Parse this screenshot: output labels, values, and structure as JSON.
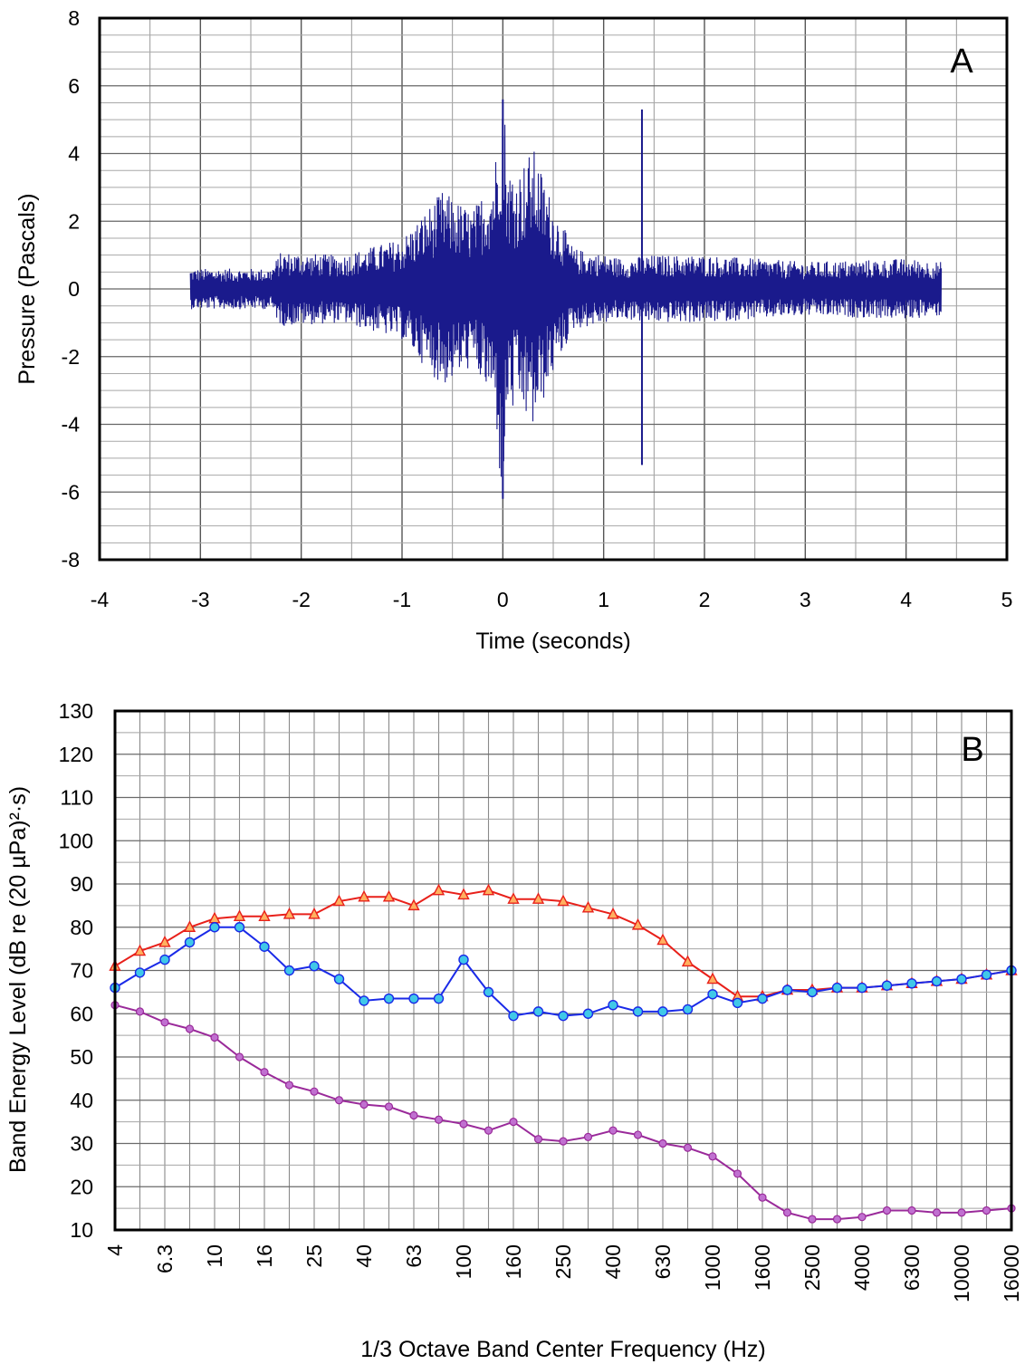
{
  "chart_data": [
    {
      "panel": "A",
      "type": "line",
      "panel_label": "A",
      "xlabel": "Time (seconds)",
      "ylabel": "Pressure (Pascals)",
      "xlim": [
        -4,
        5
      ],
      "ylim": [
        -8,
        8
      ],
      "x_ticks": [
        -4,
        -3,
        -2,
        -1,
        0,
        1,
        2,
        3,
        4,
        5
      ],
      "y_ticks": [
        -8,
        -6,
        -4,
        -2,
        0,
        2,
        4,
        6,
        8
      ],
      "grid": true,
      "series_color": "#1a1a8c",
      "waveform": {
        "start": -3.1,
        "end": 4.35,
        "envelope_points": [
          [
            -3.1,
            0.6
          ],
          [
            -2.3,
            0.6
          ],
          [
            -2.2,
            1.1
          ],
          [
            -1.6,
            1.0
          ],
          [
            -1.0,
            1.5
          ],
          [
            -0.6,
            2.9
          ],
          [
            -0.3,
            2.3
          ],
          [
            -0.1,
            3.4
          ],
          [
            0.0,
            5.6
          ],
          [
            0.05,
            3.0
          ],
          [
            0.3,
            4.2
          ],
          [
            0.5,
            2.5
          ],
          [
            0.7,
            1.2
          ],
          [
            1.2,
            0.9
          ],
          [
            1.45,
            1.0
          ],
          [
            2.0,
            1.0
          ],
          [
            3.0,
            0.8
          ],
          [
            4.0,
            0.9
          ],
          [
            4.35,
            0.8
          ]
        ],
        "spikes": [
          {
            "x": 0.0,
            "max": 5.6,
            "min": -6.2
          },
          {
            "x": 1.38,
            "max": 5.3,
            "min": -5.2
          }
        ]
      }
    },
    {
      "panel": "B",
      "type": "line",
      "panel_label": "B",
      "xlabel": "1/3 Octave Band Center Frequency (Hz)",
      "ylabel": "Band Energy Level (dB re (20 µPa)²·s)",
      "ylim": [
        10,
        130
      ],
      "y_ticks": [
        10,
        20,
        30,
        40,
        50,
        60,
        70,
        80,
        90,
        100,
        110,
        120,
        130
      ],
      "grid": true,
      "categories": [
        "4",
        "5",
        "6.3",
        "8",
        "10",
        "12.5",
        "16",
        "20",
        "25",
        "31.5",
        "40",
        "50",
        "63",
        "80",
        "100",
        "125",
        "160",
        "200",
        "250",
        "315",
        "400",
        "500",
        "630",
        "800",
        "1000",
        "1250",
        "1600",
        "2000",
        "2500",
        "3150",
        "4000",
        "5000",
        "6300",
        "8000",
        "10000",
        "12500",
        "16000"
      ],
      "labeled_categories": [
        "4",
        "6.3",
        "10",
        "16",
        "25",
        "40",
        "63",
        "100",
        "160",
        "250",
        "400",
        "630",
        "1000",
        "1600",
        "2500",
        "4000",
        "6300",
        "10000",
        "16000"
      ],
      "series": [
        {
          "color": "#e8201a",
          "marker": "triangle",
          "marker_fill": "#ffb060",
          "values": [
            71,
            74.5,
            76.5,
            80,
            82,
            82.5,
            82.5,
            83,
            83,
            86,
            87,
            87,
            85,
            88.5,
            87.5,
            88.5,
            86.5,
            86.5,
            86,
            84.5,
            83,
            80.5,
            77,
            72,
            68,
            64,
            64,
            65.5,
            65.5,
            66,
            66,
            66.5,
            67,
            67.5,
            68,
            69,
            70
          ]
        },
        {
          "color": "#1a2ae8",
          "marker": "circle",
          "marker_fill": "#40c8e8",
          "values": [
            66,
            69.5,
            72.5,
            76.5,
            80,
            80,
            75.5,
            70,
            71,
            68,
            63,
            63.5,
            63.5,
            63.5,
            72.5,
            65,
            59.5,
            60.5,
            59.5,
            60,
            62,
            60.5,
            60.5,
            61,
            64.5,
            62.5,
            63.5,
            65.5,
            65,
            66,
            66,
            66.5,
            67,
            67.5,
            68,
            69,
            70
          ]
        },
        {
          "color": "#9a2a9a",
          "marker": "circle-small",
          "marker_fill": "#c070d0",
          "values": [
            62,
            60.5,
            58,
            56.5,
            54.5,
            50,
            46.5,
            43.5,
            42,
            40,
            39,
            38.5,
            36.5,
            35.5,
            34.5,
            33,
            35,
            31,
            30.5,
            31.5,
            33,
            32,
            30,
            29,
            27,
            23,
            17.5,
            14,
            12.5,
            12.5,
            13,
            14.5,
            14.5,
            14,
            14,
            14.5,
            15
          ]
        }
      ]
    }
  ]
}
